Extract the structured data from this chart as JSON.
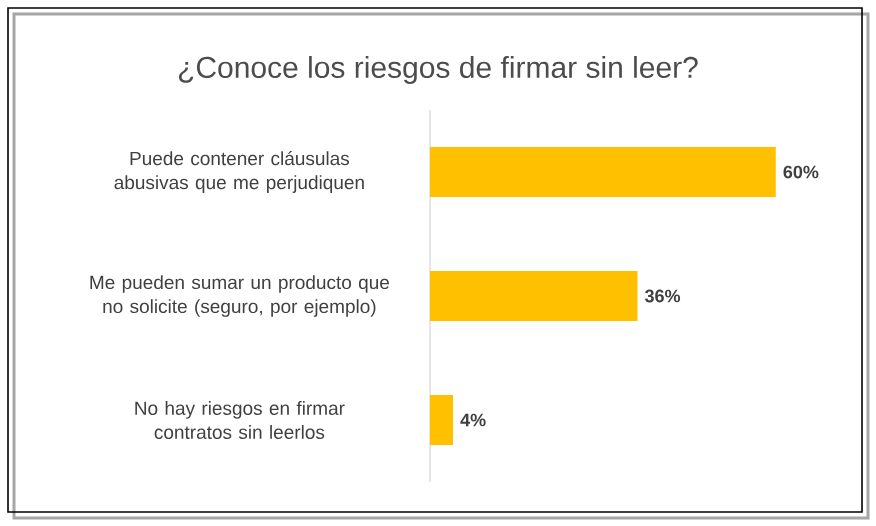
{
  "chart_data": {
    "type": "bar",
    "orientation": "horizontal",
    "title": "¿Conoce los riesgos de firmar sin leer?",
    "categories": [
      "Puede contener cláusulas abusivas que me perjudiquen",
      "Me pueden sumar un producto que no solicite (seguro, por ejemplo)",
      "No hay riesgos en firmar contratos sin leerlos"
    ],
    "values": [
      60,
      36,
      4
    ],
    "color": "#ffc000",
    "value_labels": [
      "60%",
      "36%",
      "4%"
    ]
  }
}
